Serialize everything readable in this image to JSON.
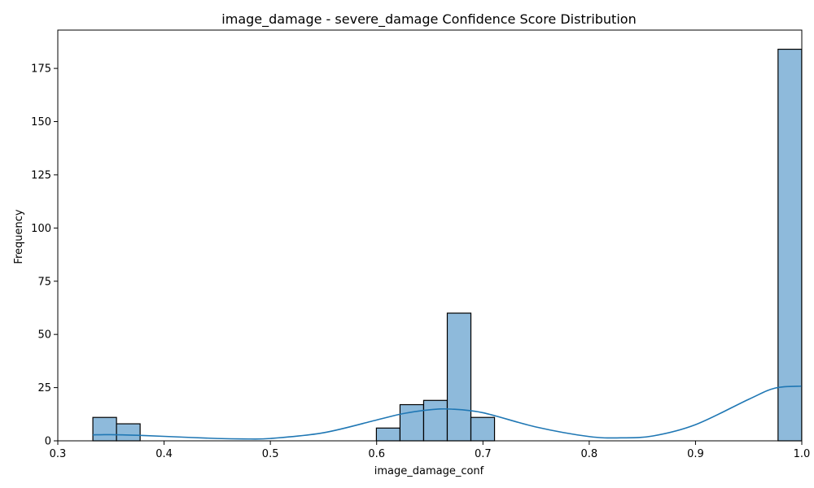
{
  "chart_data": {
    "type": "histogram",
    "title": "image_damage - severe_damage Confidence Score Distribution",
    "xlabel": "image_damage_conf",
    "ylabel": "Frequency",
    "xlim": [
      0.3,
      1.0
    ],
    "ylim": [
      0,
      193
    ],
    "xticks": [
      0.3,
      0.4,
      0.5,
      0.6,
      0.7,
      0.8,
      0.9,
      1.0
    ],
    "xtick_labels": [
      "0.3",
      "0.4",
      "0.5",
      "0.6",
      "0.7",
      "0.8",
      "0.9",
      "1.0"
    ],
    "yticks": [
      0,
      25,
      50,
      75,
      100,
      125,
      150,
      175
    ],
    "ytick_labels": [
      "0",
      "25",
      "50",
      "75",
      "100",
      "125",
      "150",
      "175"
    ],
    "bin_start": 0.333,
    "bin_width": 0.02223,
    "bins": [
      {
        "index": 0,
        "count": 11
      },
      {
        "index": 1,
        "count": 8
      },
      {
        "index": 12,
        "count": 6
      },
      {
        "index": 13,
        "count": 17
      },
      {
        "index": 14,
        "count": 19
      },
      {
        "index": 15,
        "count": 60
      },
      {
        "index": 16,
        "count": 11
      },
      {
        "index": 29,
        "count": 184
      }
    ],
    "kde": {
      "x": [
        0.333,
        0.35,
        0.375,
        0.4,
        0.45,
        0.475,
        0.5,
        0.55,
        0.6,
        0.625,
        0.65,
        0.67,
        0.7,
        0.75,
        0.8,
        0.83,
        0.86,
        0.9,
        0.95,
        0.975,
        1.0
      ],
      "y": [
        2.8,
        2.9,
        2.6,
        2.1,
        1.1,
        0.9,
        1.1,
        3.8,
        9.8,
        12.8,
        14.6,
        14.9,
        13.2,
        6.5,
        2.0,
        1.4,
        2.3,
        7.6,
        19.5,
        24.8,
        25.7
      ]
    },
    "colors": {
      "bar_fill": "#8ebadb",
      "bar_edge": "#000000",
      "kde_line": "#1f77b4"
    },
    "grid": false,
    "legend": "none"
  }
}
